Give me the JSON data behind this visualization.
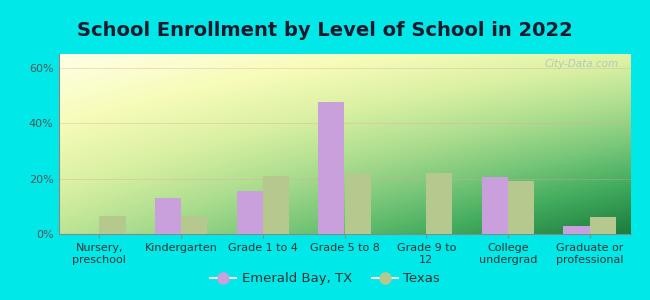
{
  "title": "School Enrollment by Level of School in 2022",
  "categories": [
    "Nursery,\npreschool",
    "Kindergarten",
    "Grade 1 to 4",
    "Grade 5 to 8",
    "Grade 9 to\n12",
    "College\nundergrad",
    "Graduate or\nprofessional"
  ],
  "emerald_bay": [
    0.0,
    13.0,
    15.5,
    47.5,
    0.0,
    20.5,
    3.0
  ],
  "texas": [
    6.5,
    6.5,
    21.0,
    22.0,
    22.0,
    19.0,
    6.0
  ],
  "color_emerald": "#c9a0dc",
  "color_texas": "#b5c98e",
  "background_outer": "#00e8e8",
  "ylim": [
    0,
    65
  ],
  "yticks": [
    0,
    20,
    40,
    60
  ],
  "ytick_labels": [
    "0%",
    "20%",
    "40%",
    "60%"
  ],
  "legend_label_emerald": "Emerald Bay, TX",
  "legend_label_texas": "Texas",
  "watermark": "City-Data.com",
  "bar_width": 0.32,
  "title_fontsize": 14,
  "tick_fontsize": 8,
  "legend_fontsize": 9.5
}
